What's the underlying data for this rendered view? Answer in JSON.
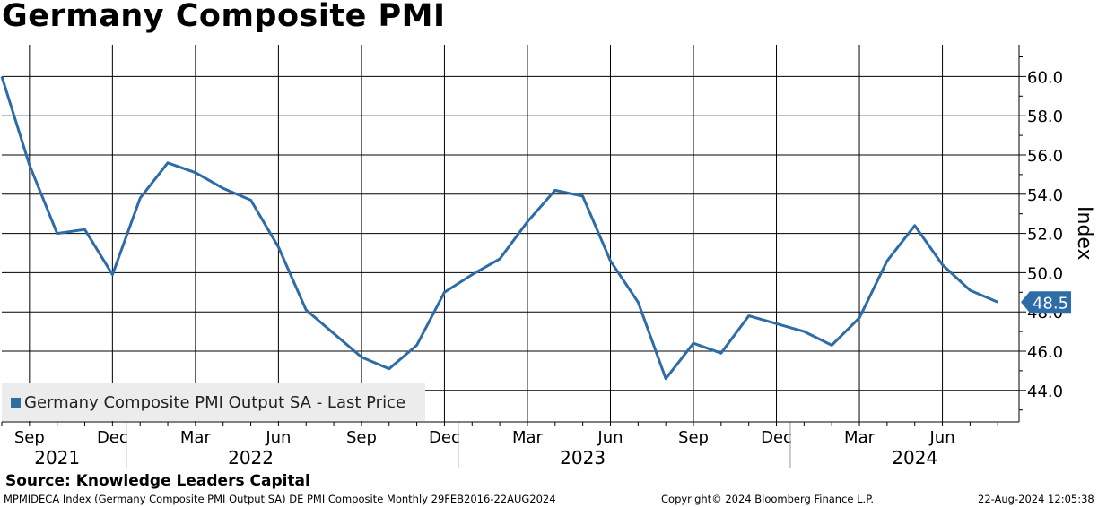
{
  "header": {
    "title": "Germany Composite PMI",
    "source": "Source: Knowledge Leaders Capital"
  },
  "footer": {
    "left": "MPMIDECA Index (Germany Composite PMI Output SA) DE PMI Composite  Monthly 29FEB2016-22AUG2024",
    "mid": "Copyright© 2024 Bloomberg Finance L.P.",
    "right": "22-Aug-2024 12:05:38"
  },
  "colors": {
    "line": "#2e6ca8",
    "grid": "#000000",
    "legend_bg": "#ececec"
  },
  "chart_data": {
    "type": "line",
    "title": "Germany Composite PMI",
    "ylabel": "Index",
    "xlabel": "",
    "ylim": [
      42.5,
      61.5
    ],
    "yticks": [
      44.0,
      46.0,
      48.0,
      50.0,
      52.0,
      54.0,
      56.0,
      58.0,
      60.0
    ],
    "grid": true,
    "legend": "bottom-left",
    "last_price_label": "48.5",
    "x_start": "2021-08",
    "x_end": "2024-08",
    "month_ticks": [
      {
        "label": "Sep",
        "month": "2021-09"
      },
      {
        "label": "Dec",
        "month": "2021-12"
      },
      {
        "label": "Mar",
        "month": "2022-03"
      },
      {
        "label": "Jun",
        "month": "2022-06"
      },
      {
        "label": "Sep",
        "month": "2022-09"
      },
      {
        "label": "Dec",
        "month": "2022-12"
      },
      {
        "label": "Mar",
        "month": "2023-03"
      },
      {
        "label": "Jun",
        "month": "2023-06"
      },
      {
        "label": "Sep",
        "month": "2023-09"
      },
      {
        "label": "Dec",
        "month": "2023-12"
      },
      {
        "label": "Mar",
        "month": "2024-03"
      },
      {
        "label": "Jun",
        "month": "2024-06"
      }
    ],
    "year_labels": [
      {
        "label": "2021",
        "month": "2021-10"
      },
      {
        "label": "2022",
        "month": "2022-05"
      },
      {
        "label": "2023",
        "month": "2023-05"
      },
      {
        "label": "2024",
        "month": "2024-05"
      }
    ],
    "year_separators": [
      "2022-01",
      "2023-01",
      "2024-01"
    ],
    "series": [
      {
        "name": "Germany Composite PMI Output SA - Last Price",
        "x": [
          "2021-08",
          "2021-09",
          "2021-10",
          "2021-11",
          "2021-12",
          "2022-01",
          "2022-02",
          "2022-03",
          "2022-04",
          "2022-05",
          "2022-06",
          "2022-07",
          "2022-08",
          "2022-09",
          "2022-10",
          "2022-11",
          "2022-12",
          "2023-01",
          "2023-02",
          "2023-03",
          "2023-04",
          "2023-05",
          "2023-06",
          "2023-07",
          "2023-08",
          "2023-09",
          "2023-10",
          "2023-11",
          "2023-12",
          "2024-01",
          "2024-02",
          "2024-03",
          "2024-04",
          "2024-05",
          "2024-06",
          "2024-07",
          "2024-08"
        ],
        "values": [
          60.0,
          55.5,
          52.0,
          52.2,
          49.9,
          53.8,
          55.6,
          55.1,
          54.3,
          53.7,
          51.3,
          48.1,
          46.9,
          45.7,
          45.1,
          46.3,
          49.0,
          49.9,
          50.7,
          52.6,
          54.2,
          53.9,
          50.6,
          48.5,
          44.6,
          46.4,
          45.9,
          47.8,
          47.4,
          47.0,
          46.3,
          47.7,
          50.6,
          52.4,
          50.4,
          49.1,
          48.5
        ]
      }
    ]
  }
}
